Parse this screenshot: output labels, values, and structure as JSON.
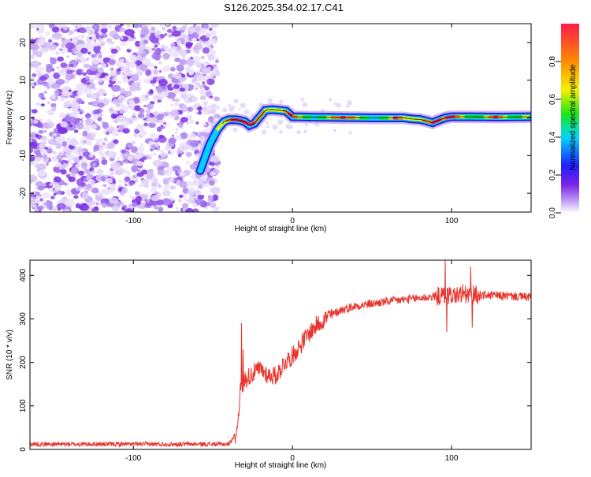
{
  "title": "S126.2025.354.02.17.C41",
  "chart_data": [
    {
      "type": "heatmap",
      "name": "spectrogram",
      "xlabel": "Height of straight line (km)",
      "ylabel": "Frequency (Hz)",
      "xlim": [
        -165,
        150
      ],
      "ylim": [
        -25,
        25
      ],
      "x_ticks": [
        -100,
        0,
        100
      ],
      "y_ticks": [
        20,
        10,
        0,
        -10,
        -20
      ],
      "colorbar": {
        "label": "Normalized spectral amplitude",
        "range": [
          0,
          1
        ],
        "ticks": [
          "0.0",
          "0.2",
          "0.4",
          "0.6",
          "0.8"
        ]
      },
      "noise_region_x": [
        -165,
        -50
      ],
      "ridge": {
        "x": [
          -58,
          -52,
          -47,
          -43,
          -40,
          -35,
          -30,
          -27,
          -24,
          -20,
          -17,
          -13,
          -8,
          -4,
          0,
          10,
          30,
          50,
          60,
          70,
          75,
          80,
          84,
          88,
          92,
          96,
          100,
          110,
          130,
          150
        ],
        "freq": [
          -14,
          -7,
          -3,
          -1,
          -0.5,
          -0.5,
          -1,
          -2,
          -1.5,
          0.5,
          2,
          2.2,
          2,
          1.8,
          0.3,
          0.2,
          0.1,
          0,
          0,
          0,
          -0.3,
          -0.4,
          -0.8,
          -1.3,
          -0.6,
          0,
          0.3,
          0.3,
          0.2,
          0.3
        ]
      }
    },
    {
      "type": "line",
      "name": "snr",
      "xlabel": "Height of straight line (km)",
      "ylabel": "SNR (10 * v/v)",
      "xlim": [
        -165,
        150
      ],
      "ylim": [
        0,
        435
      ],
      "x_ticks": [
        -100,
        0,
        100
      ],
      "y_ticks": [
        0,
        100,
        200,
        300,
        400
      ],
      "color": "#e8322b",
      "trend": {
        "x": [
          -165,
          -40,
          -35,
          -33,
          -30,
          -25,
          -20,
          -15,
          -10,
          -5,
          0,
          5,
          10,
          15,
          20,
          30,
          40,
          60,
          80,
          100,
          120,
          150
        ],
        "y": [
          12,
          12,
          40,
          130,
          160,
          175,
          185,
          170,
          170,
          200,
          215,
          240,
          265,
          285,
          300,
          320,
          330,
          340,
          348,
          355,
          355,
          350
        ]
      },
      "spikes": [
        [
          -32,
          290
        ],
        [
          -31,
          230
        ],
        [
          96,
          440
        ],
        [
          97,
          270
        ],
        [
          112,
          420
        ],
        [
          113,
          280
        ],
        [
          107,
          380
        ]
      ]
    }
  ]
}
